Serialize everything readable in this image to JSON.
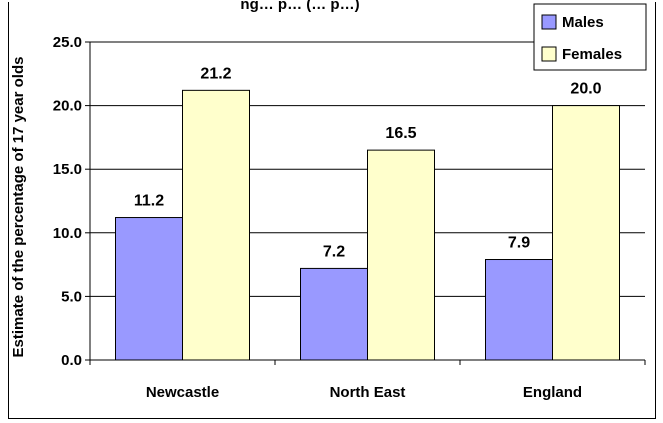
{
  "chart_data": {
    "type": "bar",
    "title": "ng… p… (… p…)",
    "ylabel": "Estimate of the percentage of 17 year olds",
    "xlabel": "",
    "categories": [
      "Newcastle",
      "North East",
      "England"
    ],
    "series": [
      {
        "name": "Males",
        "values": [
          11.2,
          7.2,
          7.9
        ],
        "color": "#9999ff"
      },
      {
        "name": "Females",
        "values": [
          21.2,
          16.5,
          20.0
        ],
        "color": "#ffffcc"
      }
    ],
    "ylim": [
      0,
      25
    ],
    "yticks": [
      "0.0",
      "5.0",
      "10.0",
      "15.0",
      "20.0",
      "25.0"
    ],
    "data_labels": [
      [
        "11.2",
        "7.2",
        "7.9"
      ],
      [
        "21.2",
        "16.5",
        "20.0"
      ]
    ],
    "grid": true,
    "legend": "top-right"
  }
}
